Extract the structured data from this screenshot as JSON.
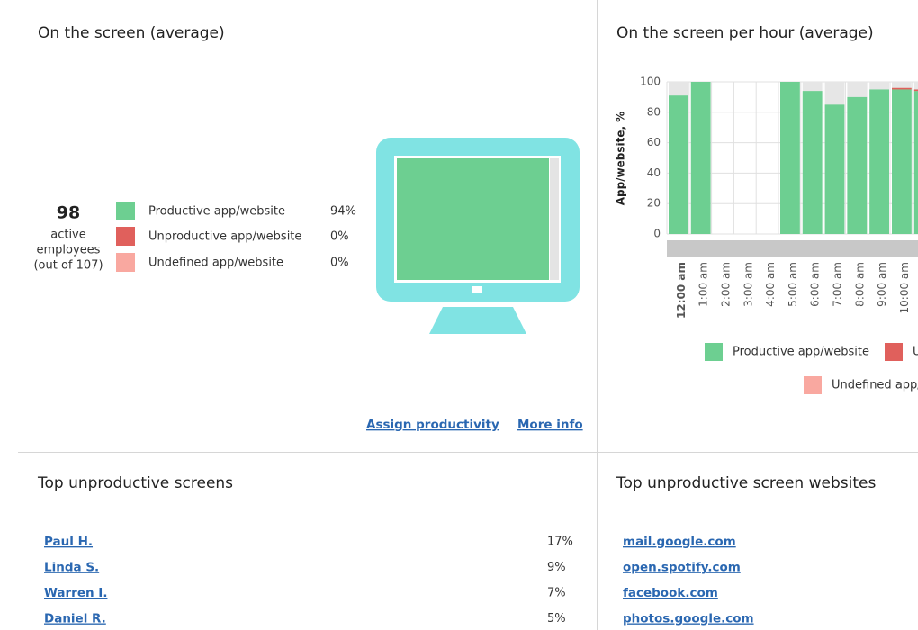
{
  "screen_average": {
    "title": "On the screen (average)",
    "active_count": "98",
    "active_lines": [
      "active",
      "employees",
      "(out of 107)"
    ],
    "legend": [
      {
        "label": "Productive app/website",
        "percent": "94%"
      },
      {
        "label": "Unproductive app/website",
        "percent": "0%"
      },
      {
        "label": "Undefined app/website",
        "percent": "0%"
      }
    ],
    "links": [
      "Assign productivity",
      "More info"
    ]
  },
  "per_hour": {
    "title": "On the screen per hour (average)",
    "chart_data": {
      "type": "stacked-bar",
      "y_label": "App/website, %",
      "categories": [
        "12:00 am",
        "1:00 am",
        "2:00 am",
        "3:00 am",
        "4:00 am",
        "5:00 am",
        "6:00 am",
        "7:00 am",
        "8:00 am",
        "9:00 am",
        "10:00 am",
        null
      ],
      "series": [
        {
          "name": "Productive app/website",
          "color": "#6dcf91",
          "values": [
            91,
            100,
            null,
            null,
            null,
            100,
            94,
            85,
            90,
            95,
            95,
            94
          ]
        },
        {
          "name": "Unproductive app/website",
          "color": "#e0605c",
          "values": [
            0,
            0,
            null,
            null,
            null,
            0,
            0,
            0,
            0,
            0,
            1,
            1
          ]
        },
        {
          "name": "Undefined app/website",
          "color": "#f9a8a0",
          "values": [
            0,
            0,
            null,
            null,
            null,
            0,
            0,
            0,
            0,
            0,
            0,
            0
          ]
        }
      ],
      "ylim": [
        0,
        100
      ],
      "yticks": [
        0,
        20,
        40,
        60,
        80,
        100
      ],
      "grid": true
    }
  },
  "unproductive_screens": {
    "title": "Top unproductive screens",
    "rows": [
      [
        "Paul H.",
        "17%"
      ],
      [
        "Linda S.",
        "9%"
      ],
      [
        "Warren I.",
        "7%"
      ],
      [
        "Daniel R.",
        "5%"
      ]
    ]
  },
  "unproductive_websites": {
    "title": "Top unproductive screen websites",
    "rows": [
      "mail.google.com",
      "open.spotify.com",
      "facebook.com",
      "photos.google.com"
    ]
  }
}
